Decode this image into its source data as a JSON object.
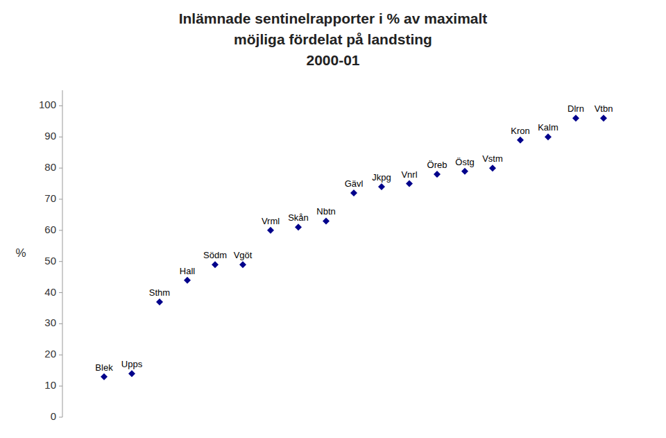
{
  "chart_data": {
    "type": "scatter",
    "title": "Inlämnade sentinelrapporter i % av maximalt\nmöjliga fördelat på landsting\n2000-01",
    "y_label": "%",
    "x": [
      1,
      2,
      3,
      4,
      5,
      6,
      7,
      8,
      9,
      10,
      11,
      12,
      13,
      14,
      15,
      16,
      17,
      18,
      19
    ],
    "values": [
      13,
      14,
      37,
      44,
      49,
      49,
      60,
      61,
      63,
      72,
      74,
      75,
      78,
      79,
      80,
      89,
      90,
      96,
      96
    ],
    "labels": [
      "Blek",
      "Upps",
      "Sthm",
      "Hall",
      "Södm",
      "Vgöt",
      "Vrml",
      "Skån",
      "Nbtn",
      "Gävl",
      "Jkpg",
      "Vnrl",
      "Öreb",
      "Östg",
      "Vstm",
      "Kron",
      "Kalm",
      "Dlrn",
      "Vtbn"
    ],
    "xlim": [
      -0.5,
      20.5
    ],
    "ylim": [
      0,
      105
    ],
    "yticks": [
      0,
      10,
      20,
      30,
      40,
      50,
      60,
      70,
      80,
      90,
      100
    ],
    "color": "#00008B",
    "marker": "diamond",
    "grid": false,
    "tick_labels": "y"
  }
}
